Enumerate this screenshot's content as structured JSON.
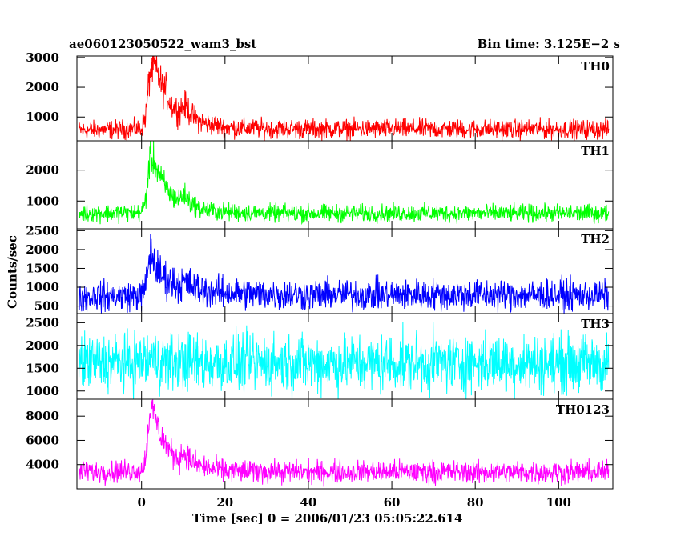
{
  "chart_data": {
    "type": "line",
    "title": "ae060123050522_wam3_bst",
    "subtitle": "Bin time: 3.125E−2 s",
    "xlabel": "Time [sec] 0 = 2006/01/23 05:05:22.614",
    "ylabel": "Counts/sec",
    "xlim": [
      -15.5,
      113
    ],
    "x_ticks": [
      0,
      20,
      40,
      60,
      80,
      100
    ],
    "grid": false,
    "panels": [
      {
        "name": "TH0",
        "color": "#ff0000",
        "ylim": [
          200,
          3050
        ],
        "y_ticks": [
          1000,
          2000,
          3000
        ],
        "x": [
          -15,
          0,
          1,
          2,
          3,
          4,
          5,
          6,
          7,
          8,
          9,
          10,
          11,
          12,
          14,
          16,
          18,
          20,
          25,
          30,
          40,
          60,
          80,
          100,
          112
        ],
        "values": [
          550,
          600,
          1050,
          2500,
          2750,
          2350,
          2000,
          1850,
          1450,
          1300,
          1200,
          1400,
          1300,
          1050,
          850,
          750,
          700,
          650,
          620,
          610,
          600,
          600,
          590,
          590,
          580
        ],
        "noise": 220
      },
      {
        "name": "TH1",
        "color": "#00ff00",
        "ylim": [
          100,
          2950
        ],
        "y_ticks": [
          1000,
          2000
        ],
        "x": [
          -15,
          0,
          1,
          2,
          3,
          4,
          5,
          6,
          7,
          8,
          9,
          10,
          11,
          12,
          14,
          16,
          18,
          20,
          25,
          30,
          40,
          60,
          80,
          100,
          112
        ],
        "values": [
          600,
          620,
          1050,
          2400,
          2300,
          1900,
          1600,
          1450,
          1200,
          1100,
          1050,
          1200,
          1100,
          900,
          750,
          700,
          660,
          640,
          620,
          610,
          600,
          600,
          600,
          600,
          600
        ],
        "noise": 200
      },
      {
        "name": "TH2",
        "color": "#0000ff",
        "ylim": [
          300,
          2550
        ],
        "y_ticks": [
          500,
          1000,
          1500,
          2000,
          2500
        ],
        "x": [
          -15,
          0,
          1,
          2,
          3,
          4,
          5,
          6,
          7,
          8,
          9,
          10,
          11,
          12,
          14,
          16,
          18,
          20,
          25,
          30,
          40,
          60,
          80,
          100,
          112
        ],
        "values": [
          750,
          780,
          1000,
          1950,
          1700,
          1400,
          1300,
          1200,
          1150,
          1100,
          1050,
          1150,
          1100,
          1000,
          950,
          900,
          870,
          850,
          830,
          820,
          800,
          800,
          800,
          790,
          790
        ],
        "noise": 280
      },
      {
        "name": "TH3",
        "color": "#00ffff",
        "ylim": [
          820,
          2700
        ],
        "y_ticks": [
          1000,
          1500,
          2000,
          2500
        ],
        "x": [
          -15,
          0,
          2,
          5,
          10,
          20,
          40,
          60,
          80,
          100,
          112
        ],
        "values": [
          1620,
          1620,
          1700,
          1650,
          1640,
          1620,
          1620,
          1610,
          1610,
          1610,
          1600
        ],
        "noise": 450
      },
      {
        "name": "TH0123",
        "color": "#ff00ff",
        "ylim": [
          2000,
          9400
        ],
        "y_ticks": [
          4000,
          6000,
          8000
        ],
        "x": [
          -15,
          0,
          1,
          2,
          3,
          4,
          5,
          6,
          7,
          8,
          9,
          10,
          11,
          12,
          14,
          16,
          18,
          20,
          25,
          30,
          40,
          60,
          80,
          100,
          112
        ],
        "values": [
          3400,
          3500,
          4600,
          8600,
          8200,
          7000,
          6100,
          5600,
          5000,
          4600,
          4500,
          5000,
          4700,
          4200,
          3900,
          3700,
          3600,
          3500,
          3450,
          3420,
          3400,
          3400,
          3380,
          3380,
          3380
        ],
        "noise": 650
      }
    ]
  }
}
